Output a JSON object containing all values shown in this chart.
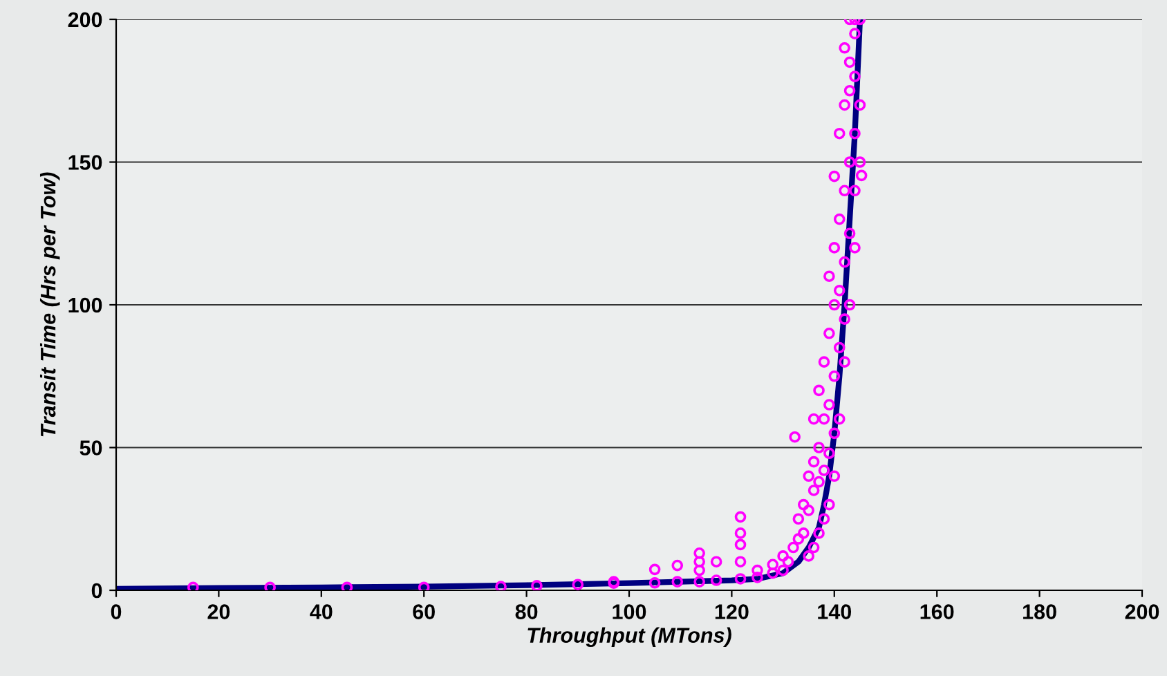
{
  "chart_data": {
    "type": "scatter",
    "xlabel": "Throughput (MTons)",
    "ylabel": "Transit Time (Hrs per Tow)",
    "xlim": [
      0,
      200
    ],
    "ylim": [
      0,
      200
    ],
    "xticks": [
      0,
      20,
      40,
      60,
      80,
      100,
      120,
      140,
      160,
      180,
      200
    ],
    "yticks": [
      0,
      50,
      100,
      150,
      200
    ],
    "grid": "y",
    "series": [
      {
        "type": "line",
        "marker": "none",
        "color": "#000080",
        "x": [
          0,
          20,
          40,
          60,
          80,
          100,
          110,
          120,
          125,
          130,
          133,
          135,
          137,
          138,
          139,
          140,
          141,
          142,
          143,
          144,
          145
        ],
        "values": [
          0.5,
          0.8,
          1,
          1.3,
          1.8,
          2.5,
          3,
          3.5,
          4,
          6,
          10,
          15,
          22,
          30,
          40,
          55,
          75,
          100,
          130,
          160,
          200
        ]
      },
      {
        "marker": "circle",
        "color": "#ff00ff",
        "x": [
          15,
          30,
          45,
          60,
          75,
          82,
          90,
          97,
          97,
          105,
          105,
          109.4,
          109.4,
          113.7,
          113.7,
          113.7,
          113.7,
          117,
          117,
          121.7,
          121.7,
          121.7,
          121.7,
          121.7,
          125,
          125,
          128,
          128,
          130,
          130,
          131,
          132,
          132.3,
          133,
          133,
          134,
          134,
          135,
          135,
          135,
          136,
          136,
          136,
          136,
          137,
          137,
          137,
          137,
          138,
          138,
          138,
          138,
          139,
          139,
          139,
          139,
          139,
          140,
          140,
          140,
          140,
          140,
          140,
          141,
          141,
          141,
          141,
          141,
          142,
          142,
          142,
          142,
          142,
          142,
          143,
          143,
          143,
          143,
          143,
          143,
          144,
          144,
          144,
          144,
          144,
          144,
          145,
          145,
          145,
          145.3
        ],
        "values": [
          1,
          1,
          1,
          1,
          1.3,
          1.6,
          2,
          2.5,
          3,
          2.6,
          7.3,
          3,
          8.7,
          3,
          7,
          10,
          13,
          3.5,
          10,
          4,
          10,
          16,
          20,
          25.7,
          4.5,
          7,
          6,
          9,
          7,
          12,
          10,
          15,
          53.7,
          18,
          25,
          20,
          30,
          12,
          28,
          40,
          15,
          35,
          45,
          60,
          20,
          38,
          50,
          70,
          25,
          42,
          60,
          80,
          30,
          48,
          65,
          90,
          110,
          40,
          55,
          75,
          100,
          120,
          145,
          60,
          85,
          105,
          130,
          160,
          80,
          95,
          115,
          140,
          170,
          190,
          100,
          125,
          150,
          175,
          185,
          200,
          120,
          140,
          160,
          180,
          195,
          200,
          150,
          170,
          200,
          145.3
        ]
      }
    ]
  }
}
